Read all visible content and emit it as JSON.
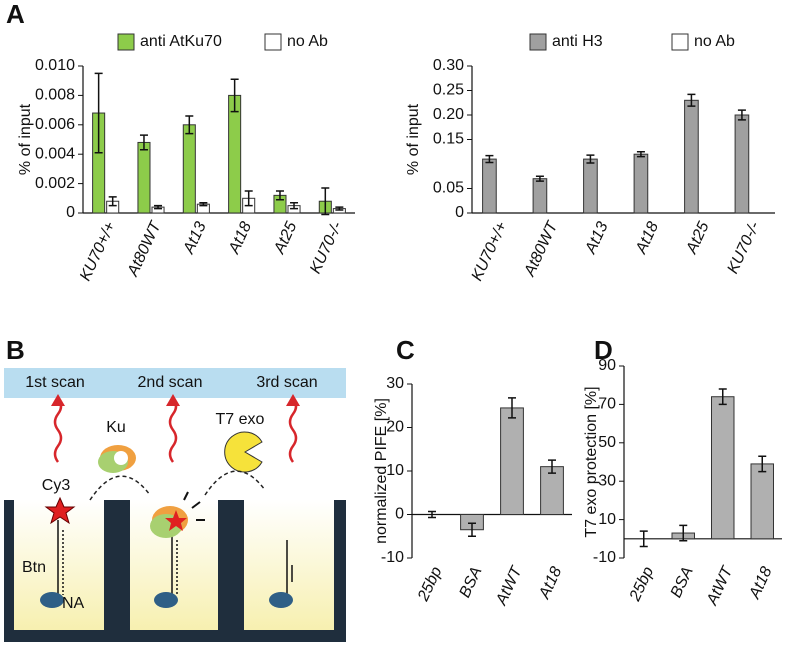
{
  "panel_labels": [
    "A",
    "B",
    "C",
    "D"
  ],
  "diagram": {
    "scans": [
      "1st scan",
      "2nd scan",
      "3rd scan"
    ],
    "enzymes": [
      "Ku",
      "T7 exo"
    ],
    "parts": [
      "Cy3",
      "Btn",
      "NA"
    ]
  },
  "chart_data": [
    {
      "type": "bar",
      "ylabel": "% of input",
      "categories": [
        "KU70+/+",
        "At80WT",
        "At13",
        "At18",
        "At25",
        "KU70-/-"
      ],
      "series": [
        {
          "name": "anti AtKu70",
          "color": "#8dcc4a",
          "values": [
            0.0068,
            0.0048,
            0.006,
            0.008,
            0.0012,
            0.0008
          ],
          "errors": [
            0.0027,
            0.0005,
            0.0006,
            0.0011,
            0.0003,
            0.0009
          ]
        },
        {
          "name": "no Ab",
          "color": "#ffffff",
          "values": [
            0.0008,
            0.0004,
            0.0006,
            0.001,
            0.0005,
            0.0003
          ],
          "errors": [
            0.0003,
            0.0001,
            0.0001,
            0.0005,
            0.0002,
            0.0001
          ]
        }
      ],
      "ylim": [
        0,
        0.01
      ],
      "yticks": [
        0,
        0.002,
        0.004,
        0.006,
        0.008,
        {
          "value": 0.01,
          "label": "0.010"
        }
      ]
    },
    {
      "type": "bar",
      "ylabel": "% of input",
      "categories": [
        "KU70+/+",
        "At80WT",
        "At13",
        "At18",
        "At25",
        "KU70-/-"
      ],
      "series": [
        {
          "name": "anti H3",
          "color": "#a0a0a0",
          "values": [
            0.11,
            0.07,
            0.11,
            0.12,
            0.23,
            0.2
          ],
          "errors": [
            0.007,
            0.005,
            0.008,
            0.005,
            0.012,
            0.01
          ]
        },
        {
          "name": "no Ab",
          "color": "#ffffff",
          "values": [
            null,
            null,
            null,
            null,
            null,
            null
          ],
          "errors": [
            null,
            null,
            null,
            null,
            null,
            null
          ]
        }
      ],
      "ylim": [
        0,
        0.3
      ],
      "yticks": [
        0,
        0.05,
        0.15,
        {
          "value": 0.2,
          "label": "0.20"
        },
        0.25,
        {
          "value": 0.3,
          "label": "0.30"
        }
      ]
    },
    {
      "type": "bar",
      "ylabel": "normalized PIFE [%]",
      "color": "#b0b0b0",
      "categories": [
        "25bp",
        "BSA",
        "AtWT",
        "At18"
      ],
      "values": [
        0,
        -3.5,
        24.5,
        11
      ],
      "errors": [
        0.7,
        1.5,
        2.3,
        1.5
      ],
      "ylim": [
        -10,
        30
      ],
      "yticks": [
        -10,
        0,
        10,
        20,
        30
      ]
    },
    {
      "type": "bar",
      "ylabel": "T7 exo protection [%]",
      "color": "#b0b0b0",
      "categories": [
        "25bp",
        "BSA",
        "AtWT",
        "At18"
      ],
      "values": [
        0,
        3,
        74,
        39
      ],
      "errors": [
        4,
        4,
        4,
        4
      ],
      "ylim": [
        -10,
        90
      ],
      "yticks": [
        -10,
        10,
        30,
        50,
        70,
        90
      ]
    }
  ]
}
